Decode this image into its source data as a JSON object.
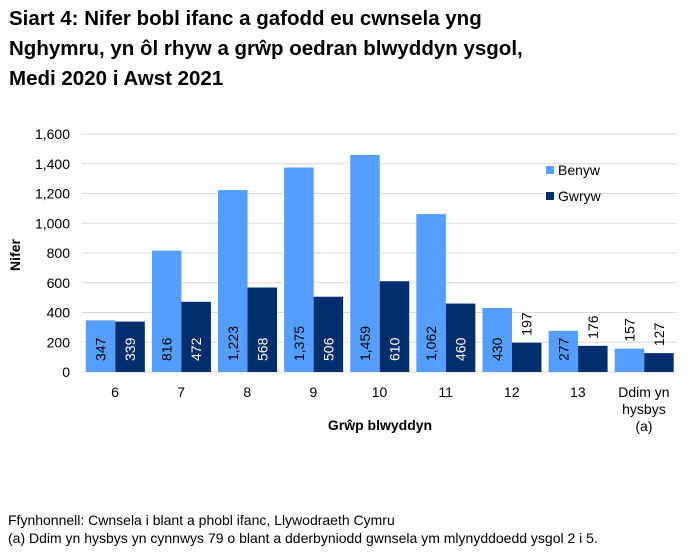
{
  "title_lines": [
    "Siart 4: Nifer bobl ifanc a gafodd eu cwnsela yng",
    "Nghymru, yn ôl rhyw a grŵp oedran blwyddyn ysgol,",
    "Medi 2020 i Awst 2021"
  ],
  "footnotes": {
    "source": "Ffynhonnell: Cwnsela i blant a phobl ifanc, Llywodraeth Cymru",
    "note_a": "(a) Ddim yn hysbys yn cynnwys 79 o blant a dderbyniodd gwnsela ym mlynyddoedd ysgol 2 i 5."
  },
  "colors": {
    "benyw": "#559DFF",
    "gwryw": "#002D6B",
    "grid": "#D9D9D9"
  },
  "chart_data": {
    "type": "bar",
    "title": "Siart 4: Nifer bobl ifanc a gafodd eu cwnsela yng Nghymru, yn ôl rhyw a grŵp oedran blwyddyn ysgol, Medi 2020 i Awst 2021",
    "xlabel": "Grŵp blwyddyn",
    "ylabel": "Nifer",
    "ylim": [
      0,
      1600
    ],
    "yticks": [
      0,
      200,
      400,
      600,
      800,
      1000,
      1200,
      1400,
      1600
    ],
    "ytick_labels": [
      "0",
      "200",
      "400",
      "600",
      "800",
      "1,000",
      "1,200",
      "1,400",
      "1,600"
    ],
    "grid": true,
    "legend_position": "upper right",
    "categories": [
      "6",
      "7",
      "8",
      "9",
      "10",
      "11",
      "12",
      "13",
      "Ddim yn hysbys (a)"
    ],
    "category_label_lines": [
      [
        "6"
      ],
      [
        "7"
      ],
      [
        "8"
      ],
      [
        "9"
      ],
      [
        "10"
      ],
      [
        "11"
      ],
      [
        "12"
      ],
      [
        "13"
      ],
      [
        "Ddim yn",
        "hysbys",
        "(a)"
      ]
    ],
    "series": [
      {
        "name": "Benyw",
        "values": [
          347,
          816,
          1223,
          1375,
          1459,
          1062,
          430,
          277,
          157
        ],
        "labels": [
          "347",
          "816",
          "1,223",
          "1,375",
          "1,459",
          "1,062",
          "430",
          "277",
          "157"
        ]
      },
      {
        "name": "Gwryw",
        "values": [
          339,
          472,
          568,
          506,
          610,
          460,
          197,
          176,
          127
        ],
        "labels": [
          "339",
          "472",
          "568",
          "506",
          "610",
          "460",
          "197",
          "176",
          "127"
        ]
      }
    ]
  }
}
